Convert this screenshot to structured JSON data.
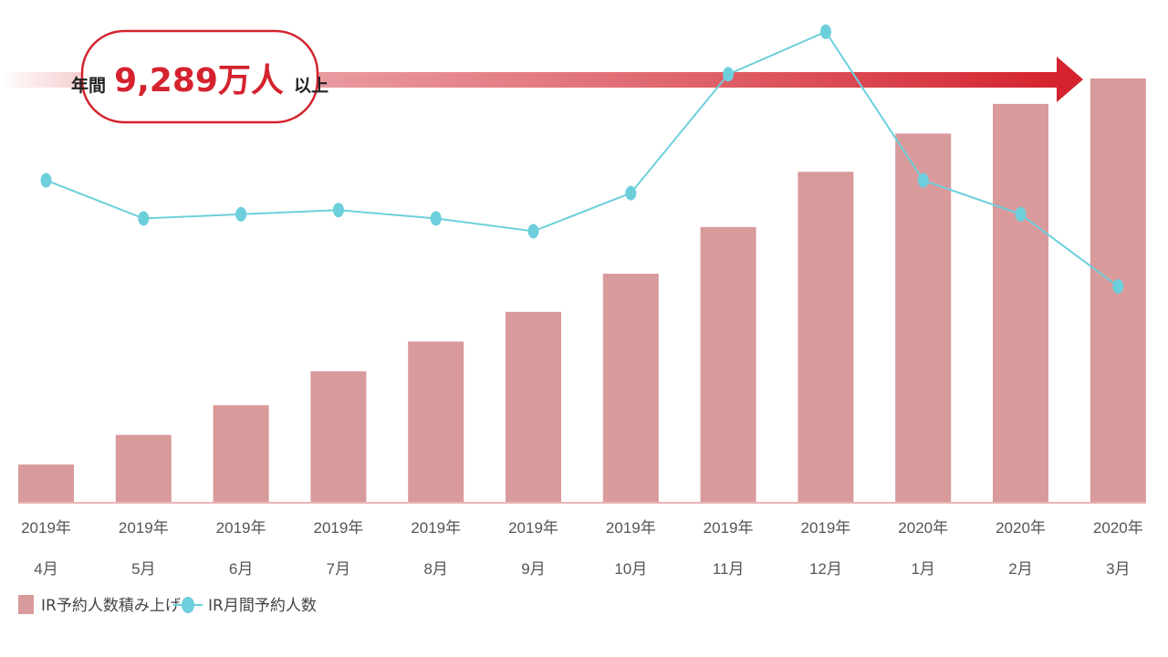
{
  "banner": {
    "prefix": "年間",
    "value": "9,289万人",
    "suffix": "以上"
  },
  "colors": {
    "bar": "#d99a9b",
    "line": "#6dcfdc",
    "arrow": "#d4232e",
    "baseline": "#e9b5b7"
  },
  "chart_data": {
    "type": "bar+line",
    "categories": [
      [
        "2019年",
        "4月"
      ],
      [
        "2019年",
        "5月"
      ],
      [
        "2019年",
        "6月"
      ],
      [
        "2019年",
        "7月"
      ],
      [
        "2019年",
        "8月"
      ],
      [
        "2019年",
        "9月"
      ],
      [
        "2019年",
        "10月"
      ],
      [
        "2019年",
        "11月"
      ],
      [
        "2019年",
        "12月"
      ],
      [
        "2020年",
        "1月"
      ],
      [
        "2020年",
        "2月"
      ],
      [
        "2020年",
        "3月"
      ]
    ],
    "series": [
      {
        "name": "IR予約人数積み上げ",
        "kind": "bar",
        "values": [
          9,
          16,
          23,
          31,
          38,
          45,
          54,
          65,
          78,
          87,
          94,
          100
        ]
      },
      {
        "name": "IR月間予約人数",
        "kind": "line",
        "values": [
          76,
          67,
          68,
          69,
          67,
          64,
          73,
          101,
          111,
          76,
          68,
          51
        ]
      }
    ],
    "ylim": [
      0,
      100
    ],
    "grid": false,
    "legend_position": "bottom-left"
  }
}
